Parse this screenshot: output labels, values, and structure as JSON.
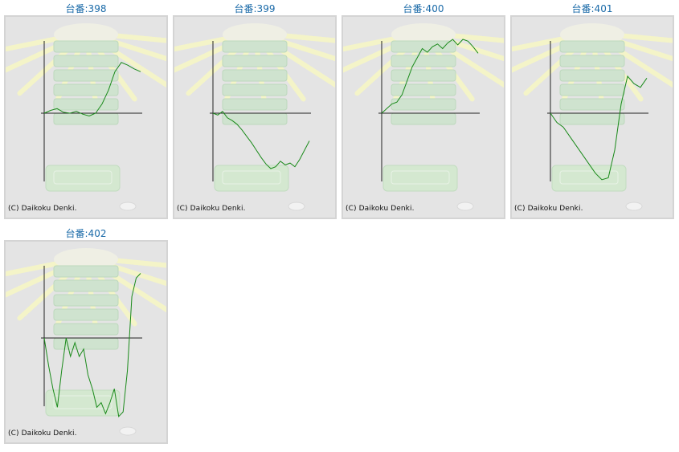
{
  "copyright": "(C) Daikoku Denki.",
  "accent_color": "#1a6aa8",
  "line_color": "#1a8a1a",
  "machines": [
    {
      "label": "台番:398",
      "chart_data": {
        "type": "line",
        "series": [
          {
            "values": [
              0,
              3,
              5,
              1,
              0,
              2,
              -1,
              -3,
              0,
              10,
              25,
              45,
              55,
              52,
              48,
              45
            ]
          }
        ]
      }
    },
    {
      "label": "台番:399",
      "chart_data": {
        "type": "line",
        "series": [
          {
            "values": [
              0,
              -2,
              2,
              -5,
              -8,
              -12,
              -18,
              -25,
              -32,
              -40,
              -48,
              -55,
              -60,
              -58,
              -52,
              -56,
              -54,
              -58,
              -50,
              -40,
              -30
            ]
          }
        ]
      }
    },
    {
      "label": "台番:400",
      "chart_data": {
        "type": "line",
        "series": [
          {
            "values": [
              0,
              5,
              10,
              12,
              20,
              35,
              50,
              60,
              70,
              66,
              72,
              75,
              70,
              76,
              80,
              74,
              80,
              78,
              72,
              65
            ]
          }
        ]
      }
    },
    {
      "label": "台番:401",
      "chart_data": {
        "type": "line",
        "series": [
          {
            "values": [
              0,
              -10,
              -15,
              -25,
              -35,
              -45,
              -55,
              -65,
              -72,
              -70,
              -40,
              10,
              40,
              32,
              28,
              38
            ]
          }
        ]
      }
    },
    {
      "label": "台番:402",
      "chart_data": {
        "type": "line",
        "series": [
          {
            "values": [
              0,
              -30,
              -55,
              -75,
              -35,
              0,
              -20,
              -5,
              -20,
              -12,
              -40,
              -55,
              -75,
              -70,
              -82,
              -70,
              -55,
              -85,
              -80,
              -35,
              45,
              65,
              70
            ]
          }
        ]
      }
    }
  ]
}
